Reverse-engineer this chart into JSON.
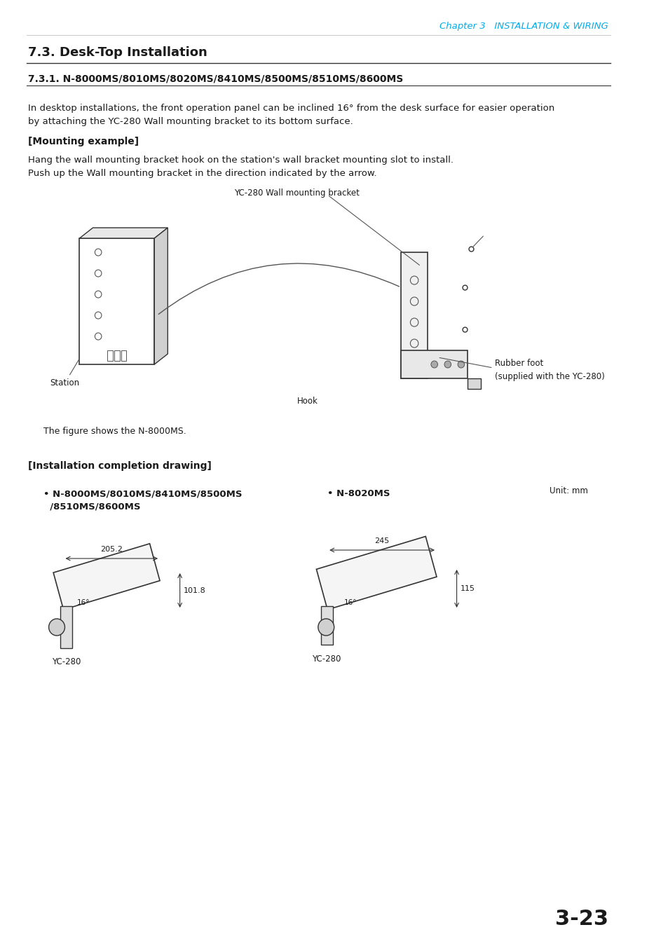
{
  "page_number": "3-23",
  "chapter_header": "Chapter 3   INSTALLATION & WIRING",
  "chapter_header_color": "#00AEEF",
  "section_title": "7.3. Desk-Top Installation",
  "subsection_title": "7.3.1. N-8000MS/8010MS/8020MS/8410MS/8500MS/8510MS/8600MS",
  "body_text1": "In desktop installations, the front operation panel can be inclined 16° from the desk surface for easier operation\nby attaching the YC-280 Wall mounting bracket to its bottom surface.",
  "mounting_header": "[Mounting example]",
  "mounting_text": "Hang the wall mounting bracket hook on the station's wall bracket mounting slot to install.\nPush up the Wall mounting bracket in the direction indicated by the arrow.",
  "label_station": "Station",
  "label_yc280": "YC-280 Wall mounting bracket",
  "label_hook": "Hook",
  "label_rubber": "Rubber foot\n(supplied with the YC-280)",
  "figure_caption": "The figure shows the N-8000MS.",
  "installation_header": "[Installation completion drawing]",
  "left_bullet": "• N-8000MS/8010MS/8410MS/8500MS\n  /8510MS/8600MS",
  "right_bullet": "• N-8020MS",
  "unit_label": "Unit: mm",
  "dim_left_width": "205.2",
  "dim_left_angle": "16°",
  "dim_left_height": "101.8",
  "dim_right_width": "245",
  "dim_right_angle": "16°",
  "dim_right_height": "115",
  "yc280_label_left": "YC-280",
  "yc280_label_right": "YC-280",
  "bg_color": "#ffffff",
  "text_color": "#1a1a1a",
  "bold_color": "#1a1a1a"
}
